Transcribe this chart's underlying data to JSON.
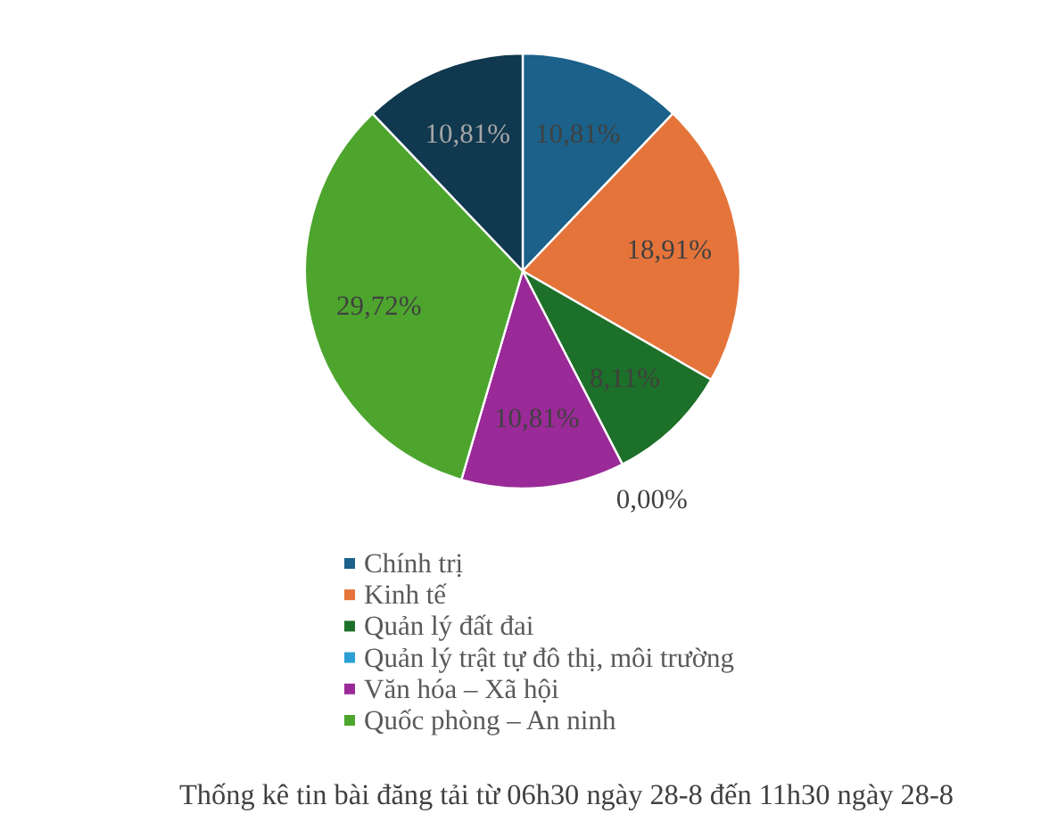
{
  "chart_data": {
    "type": "pie",
    "title": "Thống kê tin bài đăng tải từ 06h30 ngày 28-8 đến 11h30 ngày 28-8",
    "categories": [
      "Chính trị",
      "Kinh tế",
      "Quản lý đất đai",
      "Quản lý trật tự đô thị, môi trường",
      "Văn hóa – Xã hội",
      "Quốc phòng – An ninh",
      null
    ],
    "values": [
      10.81,
      18.91,
      8.11,
      0,
      10.81,
      29.72,
      10.81
    ],
    "colors": [
      "#1b6189",
      "#e5743a",
      "#1d7029",
      "#2c9fd5",
      "#9a2a97",
      "#4da52e",
      "#10384f"
    ],
    "value_labels": [
      "10,81%",
      "18,91%",
      "8,11%",
      "0,00%",
      "10,81%",
      "29,72%",
      "10,81%"
    ],
    "legend": "bottom"
  }
}
